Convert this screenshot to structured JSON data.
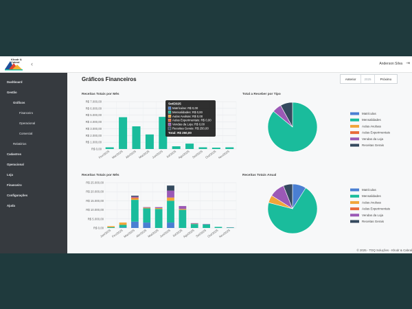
{
  "app": {
    "logo_text": "Khodr & Cabral",
    "user_name": "Anderson Silva"
  },
  "sidebar": {
    "items": [
      {
        "label": "Dashboard"
      },
      {
        "label": "Gestão"
      },
      {
        "label": "Gráficos"
      },
      {
        "label": "Financeiro"
      },
      {
        "label": "Operacional"
      },
      {
        "label": "Comercial"
      },
      {
        "label": "Relatórios"
      },
      {
        "label": "Cadastros"
      },
      {
        "label": "Operacional"
      },
      {
        "label": "Loja"
      },
      {
        "label": "Financeiro"
      },
      {
        "label": "Configurações"
      },
      {
        "label": "Ajuda"
      }
    ]
  },
  "page": {
    "title": "Gráficos Financeiros"
  },
  "pager": {
    "prev": "Anterior",
    "year": "2025",
    "next": "Próximo"
  },
  "colors": {
    "matriculas": "#4a7fd2",
    "mensalidades": "#1abc9c",
    "avulsas": "#f0a53a",
    "experimentais": "#e86b3b",
    "loja": "#9b59b6",
    "gerais": "#34495e"
  },
  "chart_data": [
    {
      "type": "bar",
      "title": "Receitas Totais por Mês",
      "categories": [
        "Fev/2025",
        "Mar/2025",
        "Abr/2025",
        "Mai/2025",
        "Jun/2025",
        "Jul/2025",
        "Ago/2025",
        "Set/2025",
        "Out/2025",
        "Nov/2025"
      ],
      "values": [
        250,
        4700,
        3350,
        2150,
        4750,
        400,
        800,
        250,
        200,
        250
      ],
      "yticks": [
        "R$ 0,00",
        "R$ 1.000,00",
        "R$ 2.000,00",
        "R$ 3.000,00",
        "R$ 4.000,00",
        "R$ 5.000,00",
        "R$ 6.000,00",
        "R$ 7.000,00"
      ],
      "ylim": [
        0,
        7000
      ],
      "tooltip": {
        "title": "Set/2025",
        "rows": [
          "Matrículas: R$ 0,00",
          "Mensalidades: R$ 0,00",
          "Aulas Avulsas: R$ 0,00",
          "Aulas Experimentais: R$ 0,00",
          "Vendas da Loja: R$ 0,00",
          "Receitas Gerais: R$ 250,00"
        ],
        "total": "Total: R$ 250,00"
      }
    },
    {
      "type": "pie",
      "title": "Total a Receber por Tipo",
      "labels": [
        "Matrículas",
        "Mensalidades",
        "Aulas Avulsas",
        "Aulas Experimentais",
        "Vendas da Loja",
        "Receitas Gerais"
      ],
      "values": [
        0,
        86,
        0,
        0,
        6,
        8
      ]
    },
    {
      "type": "bar",
      "title": "Receitas Totais por Mês",
      "categories": [
        "Jan/2025",
        "Fev/2025",
        "Mar/2025",
        "Abr/2025",
        "Mai/2025",
        "Jun/2025",
        "Jul/2025",
        "Ago/2025",
        "Set/2025",
        "Out/2025",
        "Nov/2025"
      ],
      "series": [
        {
          "name": "Matrículas",
          "values": [
            0,
            300,
            3500,
            3000,
            0,
            3000,
            0,
            0,
            0,
            0,
            0
          ]
        },
        {
          "name": "Mensalidades",
          "values": [
            400,
            1400,
            12000,
            7800,
            10500,
            12000,
            10000,
            2200,
            2000,
            600,
            300
          ]
        },
        {
          "name": "Aulas Avulsas",
          "values": [
            600,
            1300,
            800,
            400,
            500,
            1800,
            500,
            200,
            0,
            0,
            0
          ]
        },
        {
          "name": "Aulas Experimentais",
          "values": [
            0,
            0,
            500,
            0,
            0,
            0,
            0,
            0,
            0,
            0,
            0
          ]
        },
        {
          "name": "Vendas da Loja",
          "values": [
            0,
            0,
            500,
            300,
            500,
            3800,
            1600,
            300,
            200,
            0,
            100
          ]
        },
        {
          "name": "Receitas Gerais",
          "values": [
            0,
            0,
            500,
            0,
            0,
            2800,
            0,
            0,
            0,
            0,
            0
          ]
        }
      ],
      "yticks": [
        "R$ 0,00",
        "R$ 5.000,00",
        "R$ 10.000,00",
        "R$ 15.000,00",
        "R$ 20.000,00",
        "R$ 25.000,00"
      ],
      "ylim": [
        0,
        25000
      ]
    },
    {
      "type": "pie",
      "title": "Receitas Totais Anual",
      "labels": [
        "Matrículas",
        "Mensalidades",
        "Aulas Avulsas",
        "Aulas Experimentais",
        "Vendas da Loja",
        "Receitas Gerais"
      ],
      "values": [
        9,
        70,
        5,
        0,
        10,
        6
      ]
    }
  ],
  "footer": "© 2025 - TDQ Soluções - Khodr & Cabral"
}
